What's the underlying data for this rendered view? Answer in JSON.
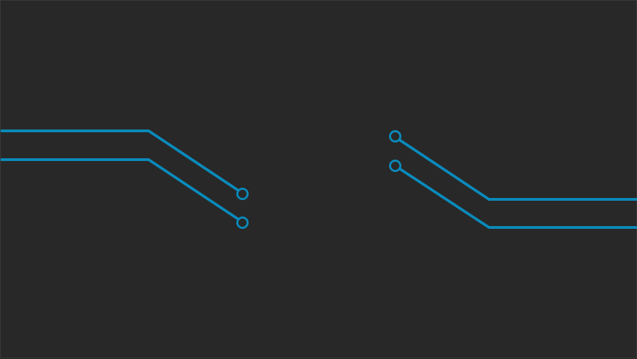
{
  "graphic": {
    "background_color": "#282828",
    "border_color": "#3a3a3a",
    "trace_color": "#0a8abb",
    "left_group": {
      "traces": [
        {
          "name": "left-trace-upper"
        },
        {
          "name": "left-trace-lower"
        }
      ]
    },
    "right_group": {
      "traces": [
        {
          "name": "right-trace-upper"
        },
        {
          "name": "right-trace-lower"
        }
      ]
    }
  }
}
